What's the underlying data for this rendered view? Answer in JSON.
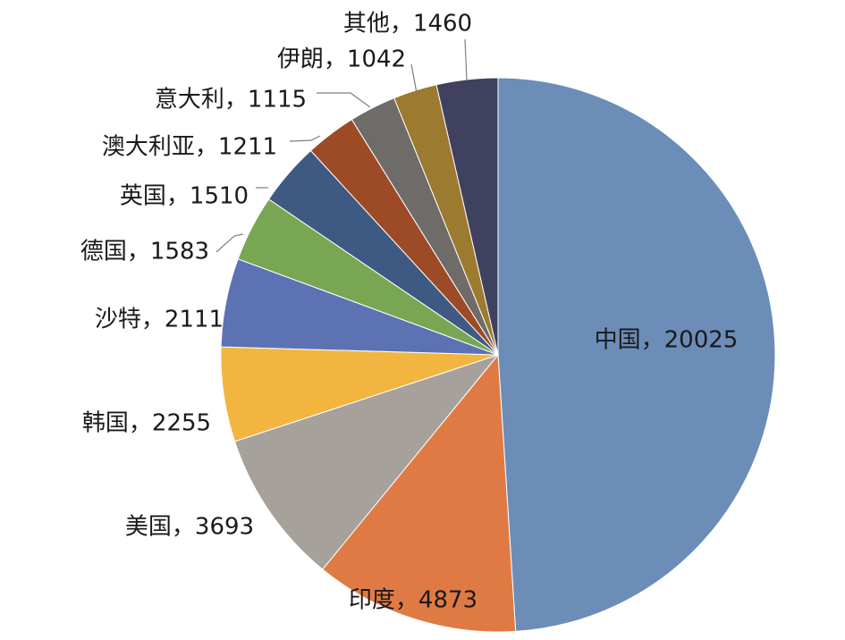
{
  "chart_data": {
    "type": "pie",
    "title": "",
    "categories": [
      "中国",
      "印度",
      "美国",
      "韩国",
      "沙特",
      "德国",
      "英国",
      "澳大利亚",
      "意大利",
      "伊朗",
      "其他"
    ],
    "values": [
      20025,
      4873,
      3693,
      2255,
      2111,
      1583,
      1510,
      1211,
      1115,
      1042,
      1460
    ],
    "labels": [
      "中国，20025",
      "印度，4873",
      "美国，3693",
      "韩国，2255",
      "沙特，2111",
      "德国，1583",
      "英国，1510",
      "澳大利亚，1211",
      "意大利，1115",
      "伊朗，1042",
      "其他，1460"
    ],
    "colors": [
      "#6b8db8",
      "#e07a44",
      "#a7a19b",
      "#f2b540",
      "#5d72b3",
      "#79a653",
      "#3f5a82",
      "#9d4b26",
      "#6e6b69",
      "#9c7a2f",
      "#40405f"
    ],
    "legend": "none",
    "grid": false
  }
}
